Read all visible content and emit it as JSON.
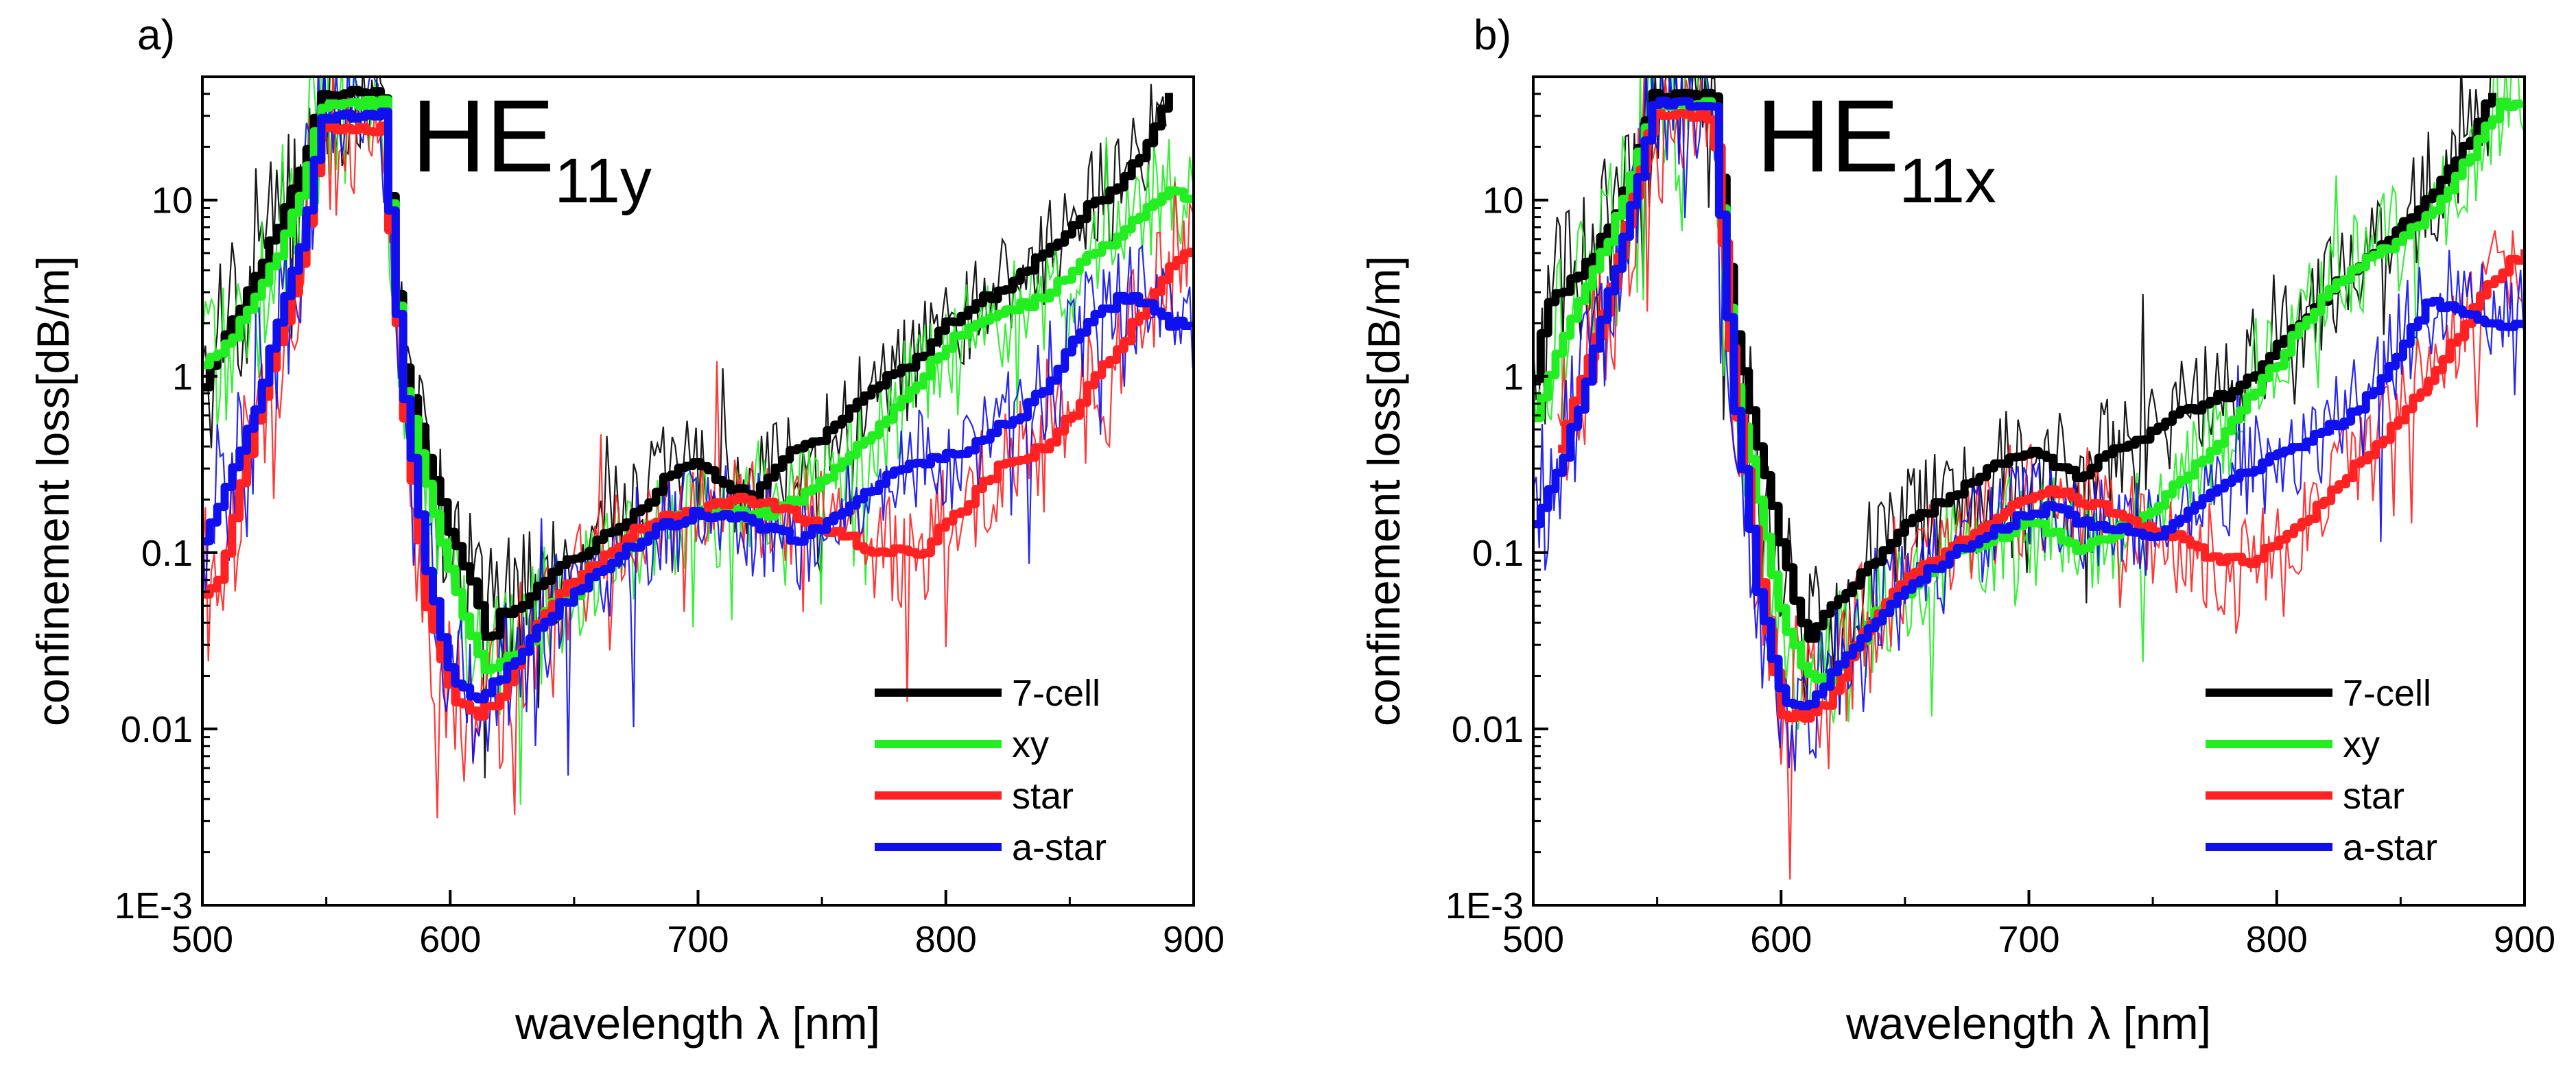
{
  "chart_data": [
    {
      "type": "line",
      "panel_label": "a)",
      "mode_label": {
        "main": "HE",
        "sub": "11y"
      },
      "xlabel": "wavelength λ [nm]",
      "ylabel": "confinement loss[dB/m]",
      "xlim": [
        500,
        900
      ],
      "ylim": [
        0.001,
        50
      ],
      "yscale": "log",
      "x_ticks": [
        500,
        600,
        700,
        800,
        900
      ],
      "x_tick_labels": [
        "500",
        "600",
        "700",
        "800",
        "900"
      ],
      "y_ticks": [
        0.001,
        0.01,
        0.1,
        1,
        10
      ],
      "y_tick_labels": [
        "1E-3",
        "0.01",
        "0.1",
        "1",
        "10"
      ],
      "legend_position": "bottom-right",
      "series": [
        {
          "name": "7-cell",
          "color": "#000000",
          "x": [
            500,
            510,
            520,
            530,
            540,
            548,
            572,
            580,
            590,
            600,
            610,
            615,
            620,
            630,
            640,
            650,
            660,
            670,
            680,
            690,
            700,
            710,
            720,
            730,
            740,
            750,
            760,
            770,
            780,
            790,
            800,
            810,
            820,
            830,
            840,
            850,
            860,
            870,
            880,
            890
          ],
          "values": [
            0.9,
            1.8,
            3.5,
            7,
            15,
            40,
            40,
            1.2,
            0.35,
            0.12,
            0.06,
            0.03,
            0.045,
            0.05,
            0.08,
            0.09,
            0.12,
            0.15,
            0.2,
            0.3,
            0.32,
            0.25,
            0.2,
            0.3,
            0.4,
            0.45,
            0.6,
            0.9,
            1.0,
            1.3,
            2.0,
            2.5,
            3,
            3.8,
            5,
            7,
            10,
            12,
            20,
            40
          ]
        },
        {
          "name": "xy",
          "color": "#22ee22",
          "x": [
            500,
            510,
            520,
            530,
            540,
            548,
            572,
            580,
            590,
            600,
            610,
            615,
            620,
            630,
            640,
            650,
            660,
            670,
            680,
            690,
            700,
            710,
            720,
            730,
            740,
            750,
            760,
            770,
            780,
            790,
            800,
            810,
            820,
            830,
            840,
            850,
            860,
            870,
            880,
            890,
            900
          ],
          "values": [
            1.2,
            1.6,
            2.5,
            5,
            12,
            35,
            35,
            1.0,
            0.25,
            0.07,
            0.03,
            0.02,
            0.025,
            0.03,
            0.05,
            0.06,
            0.08,
            0.1,
            0.13,
            0.15,
            0.18,
            0.17,
            0.16,
            0.17,
            0.2,
            0.25,
            0.35,
            0.45,
            0.7,
            1.0,
            1.5,
            2.0,
            2.2,
            2.5,
            2.8,
            4,
            5,
            6,
            9,
            11,
            10
          ]
        },
        {
          "name": "star",
          "color": "#ff2222",
          "x": [
            500,
            505,
            510,
            520,
            530,
            540,
            548,
            572,
            580,
            590,
            600,
            610,
            620,
            630,
            640,
            650,
            660,
            670,
            680,
            690,
            700,
            710,
            720,
            730,
            740,
            750,
            760,
            770,
            780,
            790,
            800,
            810,
            820,
            830,
            840,
            850,
            860,
            870,
            880,
            890,
            900
          ],
          "values": [
            0.06,
            0.06,
            0.12,
            0.5,
            1.5,
            5,
            25,
            25,
            0.8,
            0.05,
            0.015,
            0.012,
            0.015,
            0.03,
            0.05,
            0.07,
            0.09,
            0.12,
            0.15,
            0.16,
            0.17,
            0.19,
            0.2,
            0.18,
            0.16,
            0.14,
            0.12,
            0.1,
            0.1,
            0.1,
            0.15,
            0.2,
            0.3,
            0.35,
            0.4,
            0.6,
            1.0,
            1.5,
            2.5,
            4,
            5.5
          ]
        },
        {
          "name": "a-star",
          "color": "#1010ee",
          "x": [
            500,
            510,
            520,
            530,
            540,
            548,
            572,
            580,
            590,
            600,
            610,
            620,
            630,
            640,
            650,
            660,
            670,
            680,
            690,
            700,
            710,
            720,
            730,
            740,
            750,
            760,
            770,
            780,
            790,
            800,
            810,
            820,
            830,
            840,
            850,
            860,
            870,
            880,
            890,
            900
          ],
          "values": [
            0.12,
            0.25,
            0.6,
            2,
            6,
            30,
            30,
            1.0,
            0.08,
            0.02,
            0.015,
            0.02,
            0.03,
            0.045,
            0.06,
            0.08,
            0.1,
            0.13,
            0.15,
            0.17,
            0.16,
            0.15,
            0.13,
            0.12,
            0.14,
            0.18,
            0.23,
            0.3,
            0.33,
            0.35,
            0.4,
            0.5,
            0.6,
            0.9,
            1.5,
            2.2,
            2.8,
            2.6,
            2.0,
            2.0
          ]
        }
      ]
    },
    {
      "type": "line",
      "panel_label": "b)",
      "mode_label": {
        "main": "HE",
        "sub": "11x"
      },
      "xlabel": "wavelength λ [nm]",
      "ylabel": "confinement loss[dB/m]",
      "xlim": [
        500,
        900
      ],
      "ylim": [
        0.001,
        50
      ],
      "yscale": "log",
      "x_ticks": [
        500,
        600,
        700,
        800,
        900
      ],
      "x_tick_labels": [
        "500",
        "600",
        "700",
        "800",
        "900"
      ],
      "y_ticks": [
        0.001,
        0.01,
        0.1,
        1,
        10
      ],
      "y_tick_labels": [
        "1E-3",
        "0.01",
        "0.1",
        "1",
        "10"
      ],
      "legend_position": "bottom-right",
      "series": [
        {
          "name": "7-cell",
          "color": "#000000",
          "x": [
            500,
            505,
            510,
            520,
            530,
            540,
            548,
            572,
            580,
            590,
            600,
            610,
            620,
            630,
            640,
            650,
            660,
            670,
            680,
            690,
            700,
            710,
            720,
            730,
            740,
            750,
            760,
            770,
            780,
            790,
            800,
            810,
            820,
            830,
            840,
            850,
            860,
            870,
            880,
            888
          ],
          "values": [
            1.0,
            2.5,
            3,
            4,
            7,
            15,
            40,
            40,
            2.0,
            0.4,
            0.1,
            0.03,
            0.05,
            0.07,
            0.1,
            0.14,
            0.18,
            0.22,
            0.27,
            0.33,
            0.38,
            0.32,
            0.27,
            0.35,
            0.4,
            0.5,
            0.6,
            0.7,
            0.8,
            1.0,
            1.5,
            2.0,
            3,
            4,
            5,
            7,
            10,
            15,
            25,
            45
          ]
        },
        {
          "name": "xy",
          "color": "#22ee22",
          "x": [
            500,
            510,
            520,
            530,
            540,
            548,
            572,
            580,
            590,
            600,
            610,
            620,
            630,
            640,
            650,
            660,
            670,
            680,
            690,
            700,
            710,
            720,
            730,
            740,
            750,
            760,
            770,
            780,
            790,
            800,
            810,
            820,
            830,
            840,
            850,
            860,
            870,
            880,
            890,
            900
          ],
          "values": [
            0.6,
            1.5,
            3,
            6,
            15,
            35,
            35,
            1.0,
            0.2,
            0.04,
            0.02,
            0.02,
            0.03,
            0.05,
            0.06,
            0.08,
            0.1,
            0.11,
            0.13,
            0.15,
            0.13,
            0.1,
            0.12,
            0.15,
            0.18,
            0.25,
            0.35,
            0.5,
            0.8,
            1.2,
            2.0,
            3.0,
            4,
            5,
            6,
            8,
            12,
            20,
            35,
            35
          ]
        },
        {
          "name": "star",
          "color": "#ff2222",
          "x": [
            510,
            520,
            530,
            540,
            548,
            572,
            580,
            590,
            600,
            610,
            620,
            630,
            640,
            650,
            660,
            670,
            680,
            690,
            700,
            710,
            720,
            730,
            740,
            750,
            760,
            770,
            780,
            790,
            800,
            810,
            820,
            830,
            840,
            850,
            860,
            870,
            880,
            890,
            900
          ],
          "values": [
            0.4,
            1.0,
            3,
            10,
            30,
            30,
            1.0,
            0.08,
            0.012,
            0.012,
            0.015,
            0.03,
            0.05,
            0.07,
            0.09,
            0.11,
            0.14,
            0.17,
            0.2,
            0.22,
            0.2,
            0.18,
            0.15,
            0.13,
            0.12,
            0.1,
            0.09,
            0.09,
            0.12,
            0.15,
            0.2,
            0.3,
            0.4,
            0.6,
            0.9,
            1.5,
            2.5,
            4,
            5
          ]
        },
        {
          "name": "a-star",
          "color": "#1010ee",
          "x": [
            500,
            510,
            520,
            530,
            540,
            548,
            572,
            580,
            590,
            600,
            610,
            620,
            630,
            640,
            650,
            660,
            670,
            680,
            690,
            700,
            710,
            720,
            730,
            740,
            750,
            760,
            770,
            780,
            790,
            800,
            810,
            820,
            830,
            840,
            850,
            860,
            870,
            880,
            890,
            900
          ],
          "values": [
            0.15,
            0.3,
            0.8,
            3,
            10,
            35,
            35,
            0.8,
            0.06,
            0.015,
            0.013,
            0.02,
            0.03,
            0.045,
            0.06,
            0.08,
            0.1,
            0.12,
            0.14,
            0.17,
            0.18,
            0.15,
            0.14,
            0.13,
            0.12,
            0.15,
            0.2,
            0.25,
            0.3,
            0.35,
            0.4,
            0.5,
            0.6,
            0.9,
            1.5,
            2.5,
            2.6,
            2.2,
            2.0,
            2.0
          ]
        }
      ]
    }
  ]
}
